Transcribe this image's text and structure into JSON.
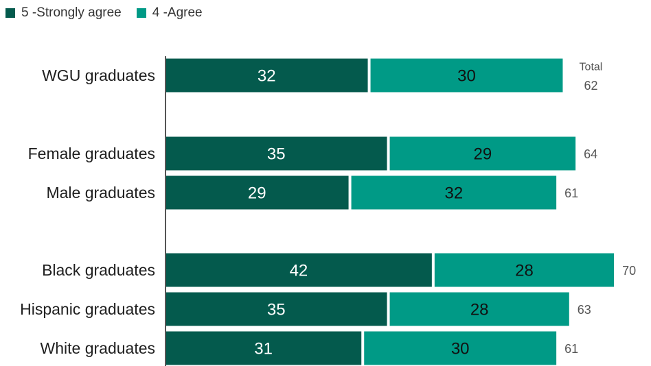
{
  "chart_data": {
    "type": "bar",
    "orientation": "horizontal",
    "stacked": true,
    "legend_position": "top-left",
    "categories": [
      "WGU graduates",
      "Female graduates",
      "Male graduates",
      "Black graduates",
      "Hispanic graduates",
      "White graduates"
    ],
    "series": [
      {
        "name": "5 -Strongly agree",
        "color": "#045a4d",
        "label_color": "#ffffff",
        "values": [
          32,
          35,
          29,
          42,
          35,
          31
        ]
      },
      {
        "name": "4 -Agree",
        "color": "#009a86",
        "label_color": "#111111",
        "values": [
          30,
          29,
          32,
          28,
          28,
          30
        ]
      }
    ],
    "totals": [
      62,
      64,
      61,
      70,
      63,
      61
    ],
    "totals_header": "Total",
    "groups": [
      [
        0
      ],
      [
        1,
        2
      ],
      [
        3,
        4,
        5
      ]
    ]
  }
}
